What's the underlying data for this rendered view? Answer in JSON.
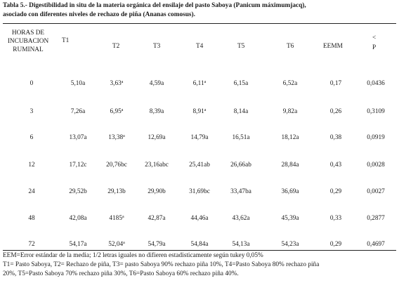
{
  "caption": {
    "line1": "Tabla 5.-  Digestibilidad in situ de la materia orgánica del ensilaje del pasto Saboya (Panicum máximumjacq),",
    "line2": "asociado con diferentes niveles de rechazo de piña (Ananas comosus)."
  },
  "headers": {
    "hours_line1": "HORAS DE",
    "hours_line2": "INCUBACION",
    "hours_line3": "RUMINAL",
    "t1": "T1",
    "t2": "T2",
    "t3": "T3",
    "t4": "T4",
    "t5": "T5",
    "t6": "T6",
    "eemm": "EEMM",
    "p_symbol": "<",
    "p": "P"
  },
  "rows": [
    {
      "hour": "0",
      "t1": "5,10a",
      "t2": "3,63",
      "t2_sup": "a",
      "t3": "4,59a",
      "t4": "6,11",
      "t4_sup": "a",
      "t5": "6,15a",
      "t6": "6,52a",
      "eemm": "0,17",
      "p": "0,0436"
    },
    {
      "hour": "3",
      "t1": "7,26a",
      "t2": "6,95",
      "t2_sup": "a",
      "t3": "8,39a",
      "t4": "8,91",
      "t4_sup": "a",
      "t5": "8,14a",
      "t6": "9,82a",
      "eemm": "0,26",
      "p": "0,3109"
    },
    {
      "hour": "6",
      "t1": "13,07a",
      "t2": "13,38",
      "t2_sup": "a",
      "t3": "12,69a",
      "t4": "14,79a",
      "t4_sup": "",
      "t5": "16,51a",
      "t6": "18,12a",
      "eemm": "0,38",
      "p": "0,0919"
    },
    {
      "hour": "12",
      "t1": "17,12c",
      "t2": "20,76bc",
      "t2_sup": "",
      "t3": "23,16abc",
      "t4": "25,41ab",
      "t4_sup": "",
      "t5": "26,66ab",
      "t6": "28,84a",
      "eemm": "0,43",
      "p": "0,0028"
    },
    {
      "hour": "24",
      "t1": "29,52b",
      "t2": "29,13b",
      "t2_sup": "",
      "t3": "29,90b",
      "t4": "31,69bc",
      "t4_sup": "",
      "t5": "33,47ba",
      "t6": "36,69a",
      "eemm": "0,29",
      "p": "0,0027"
    },
    {
      "hour": "48",
      "t1": "42,08a",
      "t2": "4185",
      "t2_sup": "a",
      "t3": "42,87a",
      "t4": "44,46a",
      "t4_sup": "",
      "t5": "43,62a",
      "t6": "45,39a",
      "eemm": "0,33",
      "p": "0,2877"
    },
    {
      "hour": "72",
      "t1": "54,17a",
      "t2": "52,04",
      "t2_sup": "a",
      "t3": "54,79a",
      "t4": "54,84a",
      "t4_sup": "",
      "t5": "54,13a",
      "t6": "54,23a",
      "eemm": "0,29",
      "p": "0,4697"
    }
  ],
  "footer": {
    "line1": "EEM=Error estándar de la media; 1/2 letras iguales no difieren estadisticamente según tukey 0,05%",
    "line2": "T1= Pasto Saboya, T2= Rechazo de piña, T3= pasto Saboya 90% rechazo piña 10%, T4=Pasto Saboya 80% rechazo piña",
    "line3": "20%, T5=Pasto Saboya 70% rechazo piña 30%, T6=Pasto Saboya 60% rechazo piña 40%."
  }
}
